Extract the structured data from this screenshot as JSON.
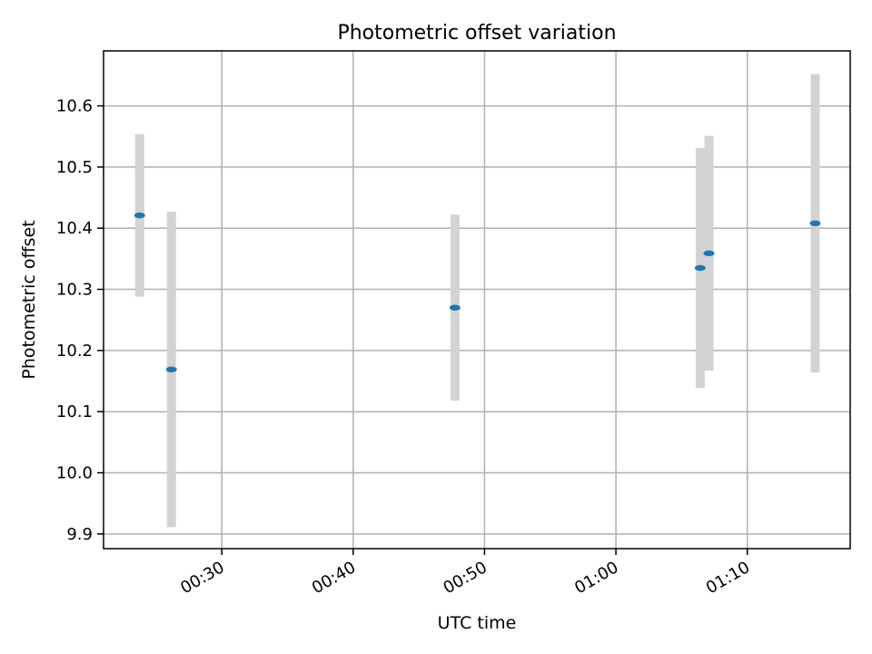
{
  "chart_data": {
    "type": "scatter",
    "title": "Photometric offset variation",
    "xlabel": "UTC time",
    "ylabel": "Photometric offset",
    "x_unit": "UTC time (HH:MM)",
    "xlim": [
      "00:21:00",
      "01:17:50"
    ],
    "ylim": [
      9.876,
      10.69
    ],
    "x_ticks": [
      "00:30",
      "00:40",
      "00:50",
      "01:00",
      "01:10"
    ],
    "y_ticks": [
      "9.9",
      "10.0",
      "10.1",
      "10.2",
      "10.3",
      "10.4",
      "10.5",
      "10.6"
    ],
    "grid": true,
    "colors": {
      "point": "#1f77b4",
      "errorbar": "#d3d3d3",
      "grid": "#b0b0b0"
    },
    "points": [
      {
        "x": "00:23:45",
        "y": 10.421,
        "yerr": 0.133
      },
      {
        "x": "00:26:10",
        "y": 10.169,
        "yerr": 0.258
      },
      {
        "x": "00:47:45",
        "y": 10.27,
        "yerr": 0.152
      },
      {
        "x": "01:06:25",
        "y": 10.335,
        "yerr": 0.196
      },
      {
        "x": "01:07:05",
        "y": 10.359,
        "yerr": 0.192
      },
      {
        "x": "01:15:10",
        "y": 10.408,
        "yerr": 0.244
      }
    ]
  }
}
